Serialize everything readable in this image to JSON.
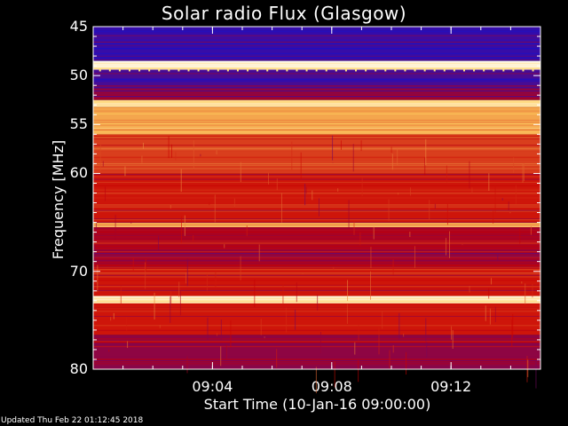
{
  "chart_data": {
    "type": "heatmap",
    "title": "Solar radio Flux (Glasgow)",
    "ylabel": "Frequency [MHz]",
    "xlabel": "Start Time (10-Jan-16 09:00:00)",
    "ylim": [
      45,
      80
    ],
    "yticks": [
      "45",
      "50",
      "55",
      "60",
      "70",
      "80"
    ],
    "xlim_minutes": [
      0,
      15
    ],
    "xticks": [
      "09:04",
      "09:08",
      "09:12"
    ],
    "colors": {
      "background": "#000000",
      "low": "#1a10c8",
      "mid": "#c80000",
      "high": "#ffd060",
      "peak": "#ffffff"
    },
    "bands": [
      {
        "from": 45.0,
        "to": 45.4,
        "level": 0.05
      },
      {
        "from": 45.4,
        "to": 48.5,
        "level": 0.05
      },
      {
        "from": 48.5,
        "to": 49.4,
        "level": 0.95
      },
      {
        "from": 49.4,
        "to": 51.3,
        "level": 0.08
      },
      {
        "from": 51.3,
        "to": 52.5,
        "level": 0.2
      },
      {
        "from": 52.5,
        "to": 53.2,
        "level": 0.85
      },
      {
        "from": 53.2,
        "to": 56.0,
        "level": 0.7
      },
      {
        "from": 56.0,
        "to": 60.0,
        "level": 0.45
      },
      {
        "from": 60.0,
        "to": 65.0,
        "level": 0.35
      },
      {
        "from": 65.0,
        "to": 65.5,
        "level": 0.7
      },
      {
        "from": 65.5,
        "to": 69.5,
        "level": 0.25
      },
      {
        "from": 69.5,
        "to": 72.5,
        "level": 0.35
      },
      {
        "from": 72.5,
        "to": 73.2,
        "level": 0.9
      },
      {
        "from": 73.2,
        "to": 76.5,
        "level": 0.35
      },
      {
        "from": 76.5,
        "to": 80.0,
        "level": 0.2
      }
    ]
  },
  "footer": "Updated Thu Feb 22 01:12:45 2018"
}
